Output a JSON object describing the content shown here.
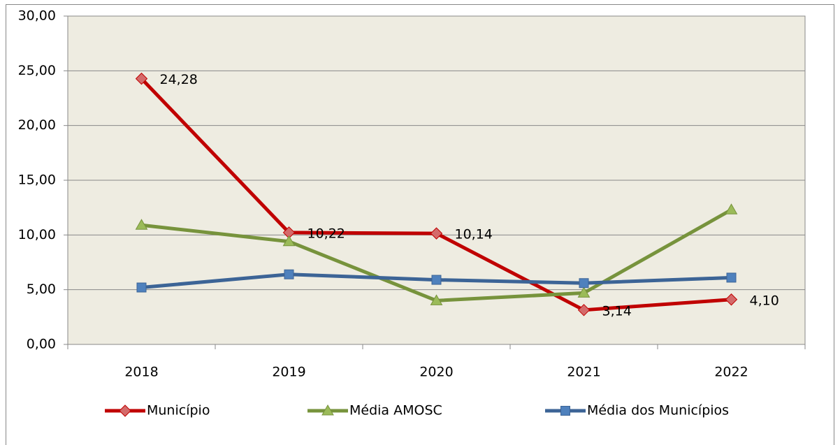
{
  "chart_data": {
    "type": "line",
    "categories": [
      "2018",
      "2019",
      "2020",
      "2021",
      "2022"
    ],
    "series": [
      {
        "name": "Município",
        "color": "#c00000",
        "marker": "diamond",
        "marker_color": "#d46a6a",
        "values": [
          24.28,
          10.22,
          10.14,
          3.14,
          4.1
        ],
        "value_labels": [
          "24,28",
          "10,22",
          "10,14",
          "3,14",
          "4,10"
        ]
      },
      {
        "name": "Média AMOSC",
        "color": "#77933c",
        "marker": "triangle",
        "marker_color": "#9bbb59",
        "values": [
          10.9,
          9.4,
          4.0,
          4.7,
          12.3
        ]
      },
      {
        "name": "Média dos Municípios",
        "color": "#3c6496",
        "marker": "square",
        "marker_color": "#4f81bd",
        "values": [
          5.2,
          6.4,
          5.9,
          5.6,
          6.1
        ]
      }
    ],
    "ylim": [
      0,
      30
    ],
    "yticks": [
      {
        "value": 0,
        "label": "0,00"
      },
      {
        "value": 5,
        "label": "5,00"
      },
      {
        "value": 10,
        "label": "10,00"
      },
      {
        "value": 15,
        "label": "15,00"
      },
      {
        "value": 20,
        "label": "20,00"
      },
      {
        "value": 25,
        "label": "25,00"
      },
      {
        "value": 30,
        "label": "30,00"
      }
    ],
    "grid": true,
    "plot_background": "#eeece1",
    "legend": "bottom"
  }
}
